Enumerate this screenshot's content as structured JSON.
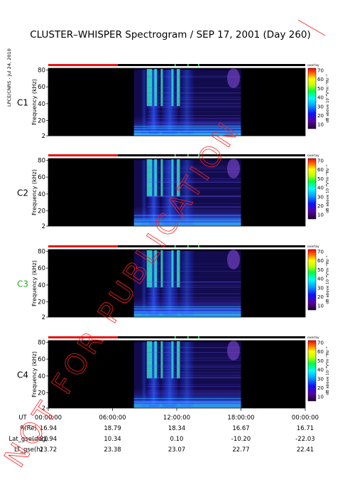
{
  "title": "CLUSTER–WHISPER Spectrogram / SEP 17, 2001 (Day 260)",
  "side_stamp": "LPCE/CNRS - Jul 24, 2010",
  "watermark": "NOT FOR PUBLICATION",
  "colors": {
    "bar_active": "#ee1111",
    "bar_idle": "#000000",
    "panel_bg": "#000000",
    "label_c3": "#22aa22",
    "label_default": "#000000",
    "watermark": "#ff2020"
  },
  "colorbar": {
    "label": "dB above 10⁻⁸V²m⁻²Hz⁻¹",
    "tag": "overlay",
    "ticks": [
      "70",
      "60",
      "50",
      "40",
      "30",
      "20",
      "10"
    ],
    "range": [
      5,
      72
    ]
  },
  "chart_data": {
    "type": "heatmap",
    "panels": [
      {
        "name": "C1",
        "label_color": "#000000"
      },
      {
        "name": "C2",
        "label_color": "#000000"
      },
      {
        "name": "C3",
        "label_color": "#22aa22"
      },
      {
        "name": "C4",
        "label_color": "#000000"
      }
    ],
    "ylabel": "Frequency (kHz)",
    "yticks": [
      "80",
      "60",
      "40",
      "20",
      "2"
    ],
    "ylim": [
      2,
      82
    ],
    "x_start": "00:00:00",
    "x_end": "24:00:00",
    "data_interval_hours": [
      8.0,
      18.0
    ],
    "active_bar_hours": [
      0,
      6.5
    ],
    "xticks": [
      "00:00:00",
      "06:00:00",
      "12:00:00",
      "18:00:00",
      "00:00:00"
    ],
    "ephemeris": [
      {
        "name": "UT",
        "values": []
      },
      {
        "name": "R(Re)",
        "values": [
          "16.94",
          "18.79",
          "18.34",
          "16.67",
          "16.71"
        ]
      },
      {
        "name": "Lat_gse(deg)",
        "values": [
          "21.94",
          "10.34",
          "0.10",
          "-10.20",
          "-22.03"
        ]
      },
      {
        "name": "LT_gse(h)",
        "values": [
          "23.72",
          "23.38",
          "23.07",
          "22.77",
          "22.41"
        ]
      }
    ]
  }
}
